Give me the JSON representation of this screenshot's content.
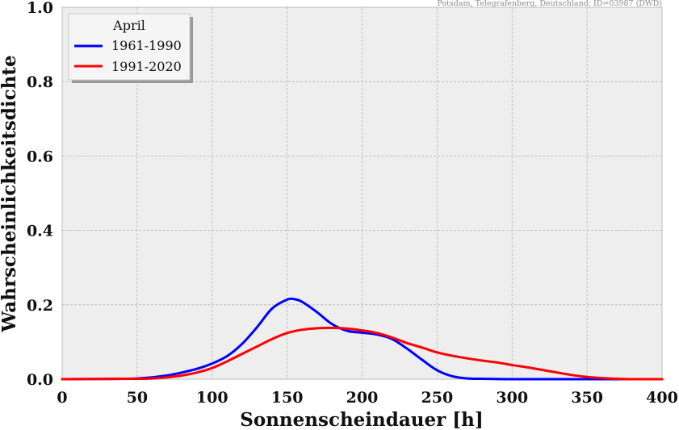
{
  "source_note": "Potsdam, Telegrafenberg, Deutschland: ID=03987 (DWD)",
  "chart_data": {
    "type": "line",
    "xlabel": "Sonnenscheindauer [h]",
    "ylabel": "Wahrscheinlichkeitsdichte",
    "xlim": [
      0,
      400
    ],
    "ylim": [
      0,
      1.0
    ],
    "xticks": [
      "0",
      "50",
      "100",
      "150",
      "200",
      "250",
      "300",
      "350",
      "400"
    ],
    "yticks": [
      "0.0",
      "0.2",
      "0.4",
      "0.6",
      "0.8",
      "1.0"
    ],
    "grid": true,
    "legend": {
      "title": "April",
      "placement": "top-left"
    },
    "series": [
      {
        "name": "1961-1990",
        "color": "#0000ff",
        "x": [
          0,
          40,
          50,
          60,
          70,
          80,
          90,
          100,
          110,
          120,
          130,
          140,
          150,
          155,
          160,
          170,
          180,
          190,
          200,
          210,
          220,
          230,
          240,
          250,
          260,
          270,
          280,
          300,
          350,
          400
        ],
        "y": [
          0,
          0.001,
          0.002,
          0.005,
          0.01,
          0.018,
          0.028,
          0.042,
          0.062,
          0.095,
          0.14,
          0.19,
          0.214,
          0.215,
          0.208,
          0.18,
          0.148,
          0.13,
          0.125,
          0.12,
          0.108,
          0.082,
          0.052,
          0.024,
          0.008,
          0.002,
          0.001,
          0,
          0,
          0
        ]
      },
      {
        "name": "1991-2020",
        "color": "#ff0000",
        "x": [
          0,
          50,
          60,
          70,
          80,
          90,
          100,
          110,
          120,
          130,
          140,
          150,
          160,
          170,
          180,
          190,
          200,
          210,
          220,
          230,
          240,
          250,
          260,
          270,
          280,
          290,
          300,
          310,
          320,
          330,
          340,
          350,
          360,
          370,
          380,
          400
        ],
        "y": [
          0,
          0.001,
          0.002,
          0.005,
          0.01,
          0.018,
          0.03,
          0.048,
          0.068,
          0.088,
          0.108,
          0.124,
          0.133,
          0.137,
          0.138,
          0.136,
          0.131,
          0.124,
          0.112,
          0.097,
          0.085,
          0.072,
          0.063,
          0.056,
          0.05,
          0.045,
          0.038,
          0.032,
          0.025,
          0.018,
          0.011,
          0.006,
          0.003,
          0.001,
          0,
          0
        ]
      }
    ]
  }
}
